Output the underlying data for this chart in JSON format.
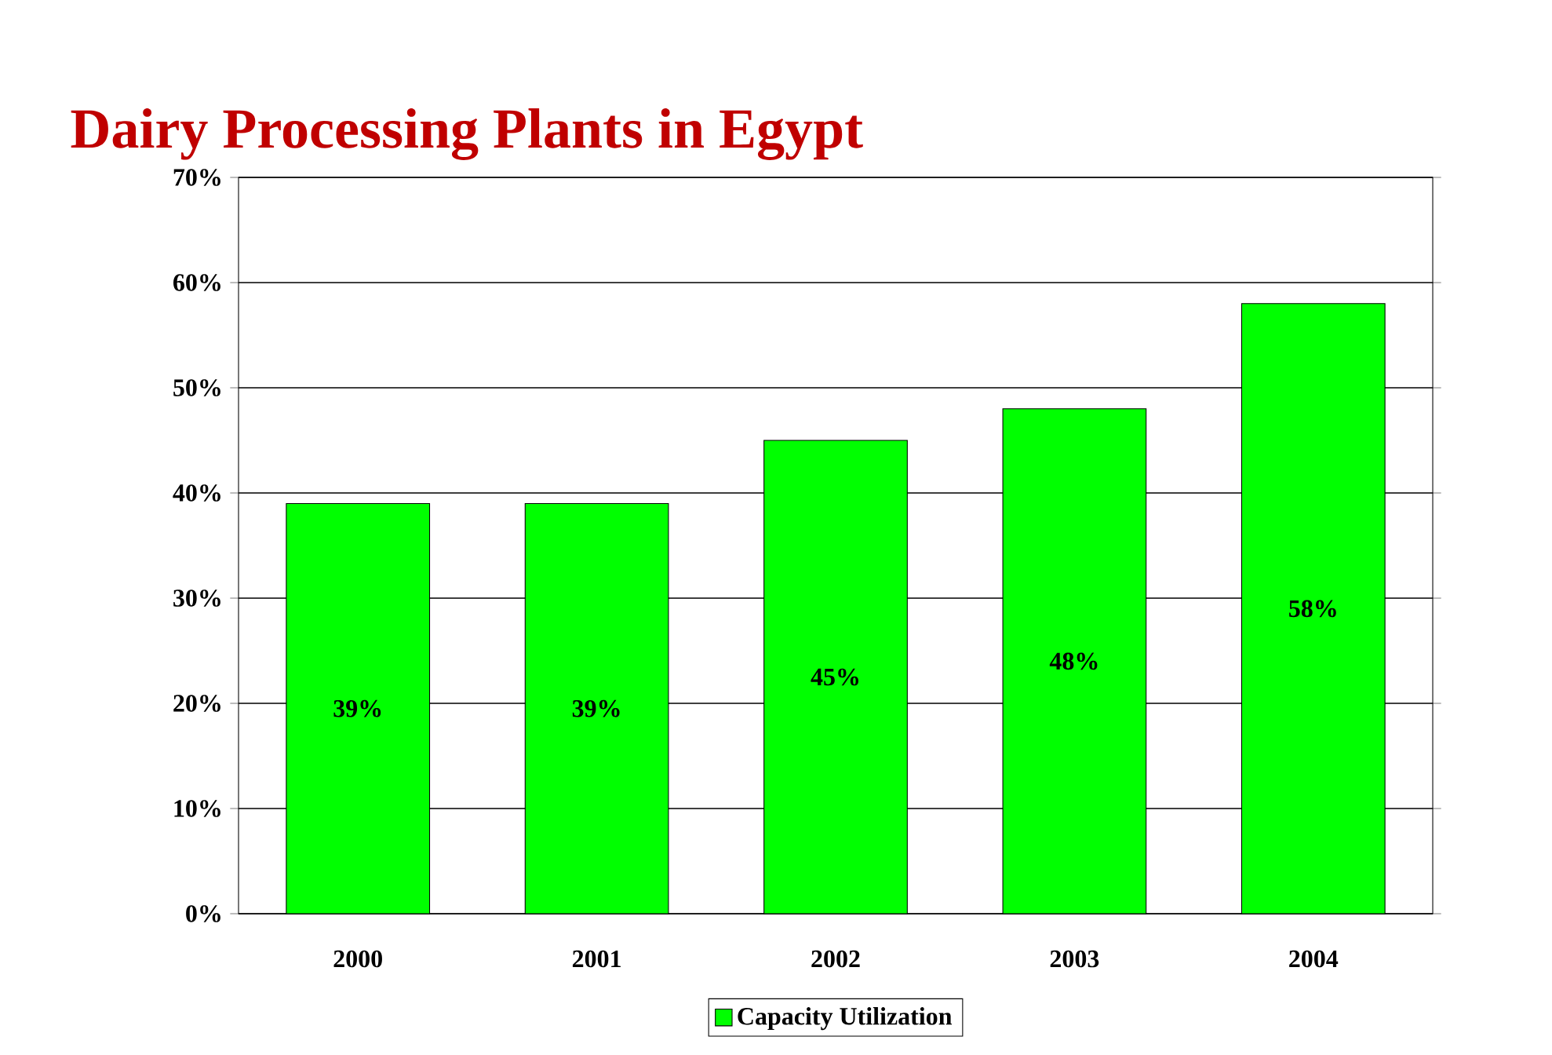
{
  "chart_data": {
    "type": "bar",
    "title": "Dairy Processing Plants in Egypt",
    "categories": [
      "2000",
      "2001",
      "2002",
      "2003",
      "2004"
    ],
    "series": [
      {
        "name": "Capacity Utilization",
        "color": "#00ff00",
        "values": [
          39,
          39,
          45,
          48,
          58
        ],
        "value_labels": [
          "39%",
          "39%",
          "45%",
          "48%",
          "58%"
        ]
      }
    ],
    "ylim": [
      0,
      70
    ],
    "yticks": [
      {
        "value": 0,
        "label": "0%"
      },
      {
        "value": 10,
        "label": "10%"
      },
      {
        "value": 20,
        "label": "20%"
      },
      {
        "value": 30,
        "label": "30%"
      },
      {
        "value": 40,
        "label": "40%"
      },
      {
        "value": 50,
        "label": "50%"
      },
      {
        "value": 60,
        "label": "60%"
      },
      {
        "value": 70,
        "label": "70%"
      }
    ],
    "grid": "y",
    "legend": "bottom"
  }
}
